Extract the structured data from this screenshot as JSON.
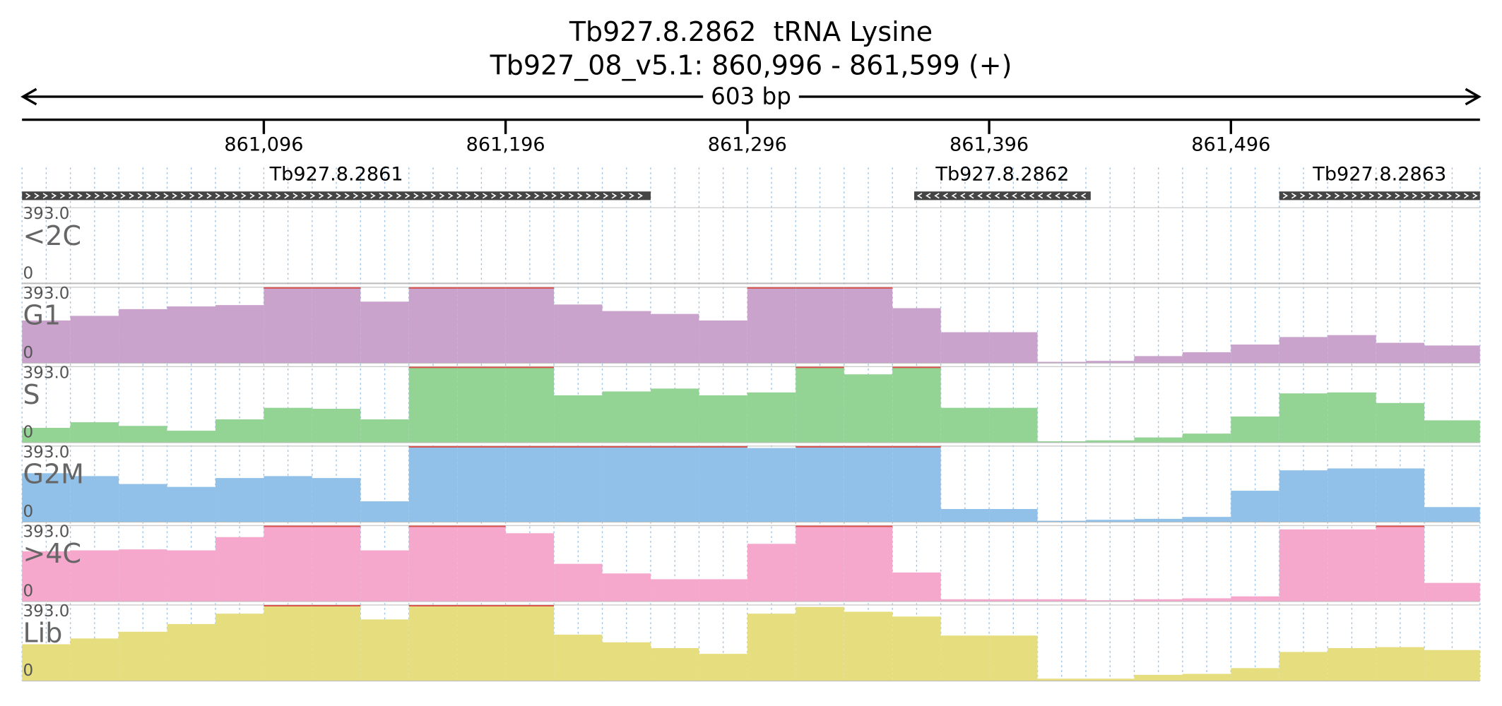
{
  "chart_data": {
    "type": "coverage",
    "title": "Tb927.8.2862  tRNA Lysine",
    "subtitle": "Tb927_08_v5.1: 860,996 - 861,599 (+)",
    "span_label": "603 bp",
    "xlim": [
      860996,
      861599
    ],
    "xticks": [
      {
        "value": 861096,
        "label": "861,096"
      },
      {
        "value": 861196,
        "label": "861,196"
      },
      {
        "value": 861296,
        "label": "861,296"
      },
      {
        "value": 861396,
        "label": "861,396"
      },
      {
        "value": 861496,
        "label": "861,496"
      }
    ],
    "genes": [
      {
        "name": "Tb927.8.2861",
        "start": 860996,
        "end": 861256,
        "strand": "-"
      },
      {
        "name": "Tb927.8.2862",
        "start": 861365,
        "end": 861438,
        "strand": "+"
      },
      {
        "name": "Tb927.8.2863",
        "start": 861516,
        "end": 861599,
        "strand": "-"
      }
    ],
    "bins": [
      860996,
      861016,
      861036,
      861056,
      861076,
      861096,
      861116,
      861136,
      861156,
      861176,
      861196,
      861216,
      861236,
      861256,
      861276,
      861296,
      861316,
      861336,
      861356,
      861376,
      861396,
      861416,
      861436,
      861456,
      861476,
      861496,
      861516,
      861536,
      861556,
      861576,
      861599
    ],
    "tracks": [
      {
        "name": "<2C",
        "color": "#b0b0b0",
        "ylim": [
          0,
          393
        ],
        "yticks": [
          0,
          {
            "value": 393,
            "label": "393.0"
          }
        ],
        "values": [
          0,
          0,
          0,
          0,
          0,
          0,
          0,
          0,
          0,
          0,
          0,
          0,
          0,
          0,
          0,
          0,
          0,
          0,
          0,
          0,
          0,
          0,
          0,
          0,
          0,
          0,
          0,
          0,
          0,
          0
        ]
      },
      {
        "name": "G1",
        "color": "#c9a3cc",
        "ylim": [
          0,
          393
        ],
        "yticks": [
          0,
          {
            "value": 393,
            "label": "393.0"
          }
        ],
        "values": [
          220,
          244,
          279,
          293,
          300,
          393,
          393,
          318,
          393,
          393,
          393,
          303,
          269,
          254,
          220,
          393,
          393,
          393,
          284,
          159,
          159,
          5,
          10,
          35,
          55,
          95,
          134,
          144,
          104,
          90
        ]
      },
      {
        "name": "S",
        "color": "#93d393",
        "ylim": [
          0,
          393
        ],
        "yticks": [
          0,
          {
            "value": 393,
            "label": "393.0"
          }
        ],
        "values": [
          75,
          104,
          85,
          60,
          119,
          179,
          174,
          119,
          393,
          393,
          393,
          244,
          264,
          279,
          244,
          259,
          393,
          353,
          393,
          179,
          179,
          5,
          10,
          25,
          45,
          134,
          254,
          259,
          204,
          114
        ]
      },
      {
        "name": "G2M",
        "color": "#91c1e8",
        "ylim": [
          0,
          393
        ],
        "yticks": [
          0,
          {
            "value": 393,
            "label": "393.0"
          }
        ],
        "values": [
          252,
          237,
          196,
          181,
          227,
          237,
          227,
          106,
          393,
          393,
          393,
          393,
          393,
          393,
          393,
          383,
          393,
          393,
          393,
          66,
          66,
          5,
          10,
          15,
          25,
          161,
          267,
          277,
          277,
          76
        ]
      },
      {
        "name": ">4C",
        "color": "#f5a8cc",
        "ylim": [
          0,
          393
        ],
        "yticks": [
          0,
          {
            "value": 393,
            "label": "393.0"
          }
        ],
        "values": [
          259,
          264,
          269,
          264,
          333,
          393,
          393,
          264,
          393,
          393,
          353,
          194,
          144,
          114,
          114,
          298,
          393,
          393,
          149,
          10,
          10,
          10,
          5,
          10,
          15,
          25,
          373,
          373,
          393,
          95
        ]
      },
      {
        "name": "Lib",
        "color": "#e6de7e",
        "ylim": [
          0,
          393
        ],
        "yticks": [
          0,
          {
            "value": 393,
            "label": "393.0"
          }
        ],
        "values": [
          189,
          219,
          254,
          294,
          348,
          393,
          393,
          318,
          393,
          393,
          393,
          239,
          199,
          169,
          139,
          348,
          383,
          358,
          333,
          234,
          234,
          10,
          10,
          30,
          35,
          65,
          149,
          169,
          174,
          159
        ]
      }
    ]
  }
}
